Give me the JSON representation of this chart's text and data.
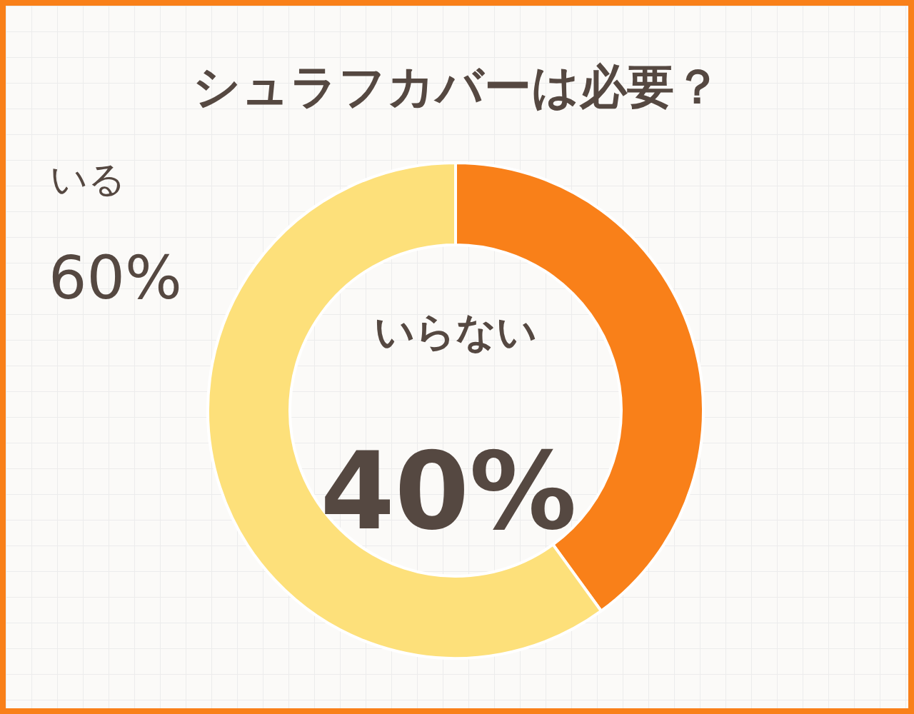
{
  "chart_data": {
    "type": "donut",
    "title": "シュラフカバーは必要？",
    "categories": [
      "いらない",
      "いる"
    ],
    "values": [
      40,
      60
    ],
    "colors": [
      "#f98019",
      "#fde07a"
    ],
    "value_labels": [
      "40%",
      "60%"
    ],
    "legend": false
  }
}
